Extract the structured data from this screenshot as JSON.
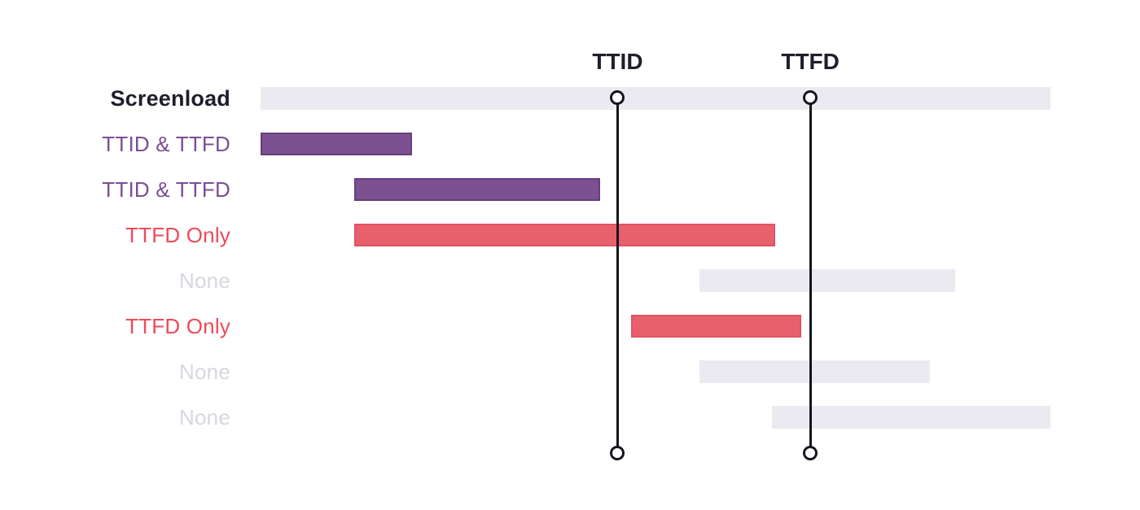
{
  "chart_data": {
    "type": "gantt",
    "title": "",
    "x_axis": {
      "visible": false,
      "unit": "percent of Screenload span",
      "range": [
        0,
        100
      ]
    },
    "grid": false,
    "rows": [
      {
        "label": "Screenload",
        "category": "screenload",
        "start_pct": 0,
        "end_pct": 100
      },
      {
        "label": "TTID & TTFD",
        "category": "ttid_ttfd",
        "start_pct": 0,
        "end_pct": 19.2
      },
      {
        "label": "TTID & TTFD",
        "category": "ttid_ttfd",
        "start_pct": 11.9,
        "end_pct": 43.0
      },
      {
        "label": "TTFD Only",
        "category": "ttfd_only",
        "start_pct": 11.9,
        "end_pct": 65.2
      },
      {
        "label": "None",
        "category": "none",
        "start_pct": 55.6,
        "end_pct": 87.9
      },
      {
        "label": "TTFD Only",
        "category": "ttfd_only",
        "start_pct": 46.9,
        "end_pct": 68.5
      },
      {
        "label": "None",
        "category": "none",
        "start_pct": 55.6,
        "end_pct": 84.7
      },
      {
        "label": "None",
        "category": "none",
        "start_pct": 64.7,
        "end_pct": 100
      }
    ],
    "markers": [
      {
        "label": "TTID",
        "position_pct": 45.2
      },
      {
        "label": "TTFD",
        "position_pct": 69.6
      }
    ],
    "colors": {
      "background": "#FFFFFF",
      "track_bar": "#ECEAF1",
      "ttid_ttfd_bar": "#7B5191",
      "ttfd_only_bar": "#E9606D",
      "screenload_label": "#211D2B",
      "ttid_ttfd_label": "#7C4E94",
      "ttfd_only_label": "#EE4A5A",
      "none_label": "#D9D6E0",
      "marker_line": "#17131F",
      "marker_label": "#211D2B"
    }
  }
}
